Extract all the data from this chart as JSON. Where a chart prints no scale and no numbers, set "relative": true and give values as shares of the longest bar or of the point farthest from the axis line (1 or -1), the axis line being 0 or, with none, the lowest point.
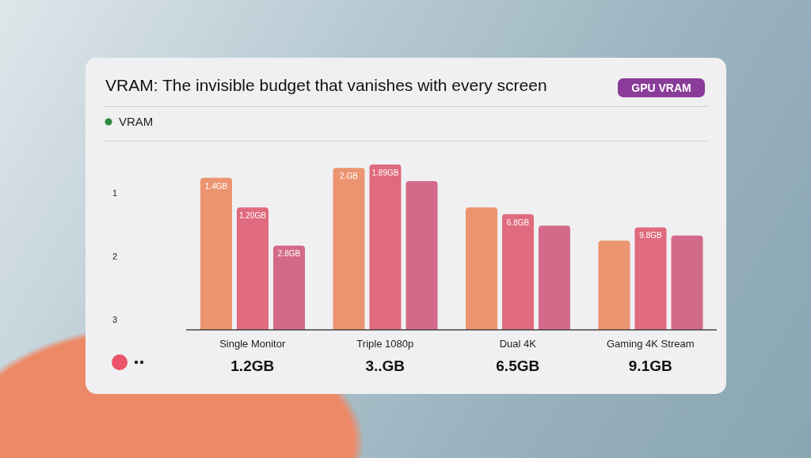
{
  "chart_data": {
    "type": "bar",
    "title": "VRAM: The invisible budget that vanishes with every screen",
    "subtitle": "VRAM",
    "relative": true,
    "categories": [
      "Single Monitor",
      "Triple 1080p",
      "Dual 4K",
      "Gaming 4K Stream"
    ],
    "series": [
      {
        "color": "#ec9470",
        "values": [
          0.92,
          0.98,
          0.74,
          0.54
        ]
      },
      {
        "color": "#e06a7e",
        "values": [
          0.74,
          1,
          0.7,
          0.62
        ]
      },
      {
        "color": "#d46a8a",
        "values": [
          0.51,
          0.9,
          0.63,
          0.57
        ]
      }
    ],
    "annotations": [
      "GPU VRAM",
      "1",
      "2",
      "3",
      "1.2GB",
      "3..GB",
      "6.5GB",
      "9.1GB",
      "1.4GB",
      "1.20GB",
      "2.8GB",
      "2.GB",
      "1.89GB",
      "6.8GB",
      "9.8GB"
    ]
  }
}
